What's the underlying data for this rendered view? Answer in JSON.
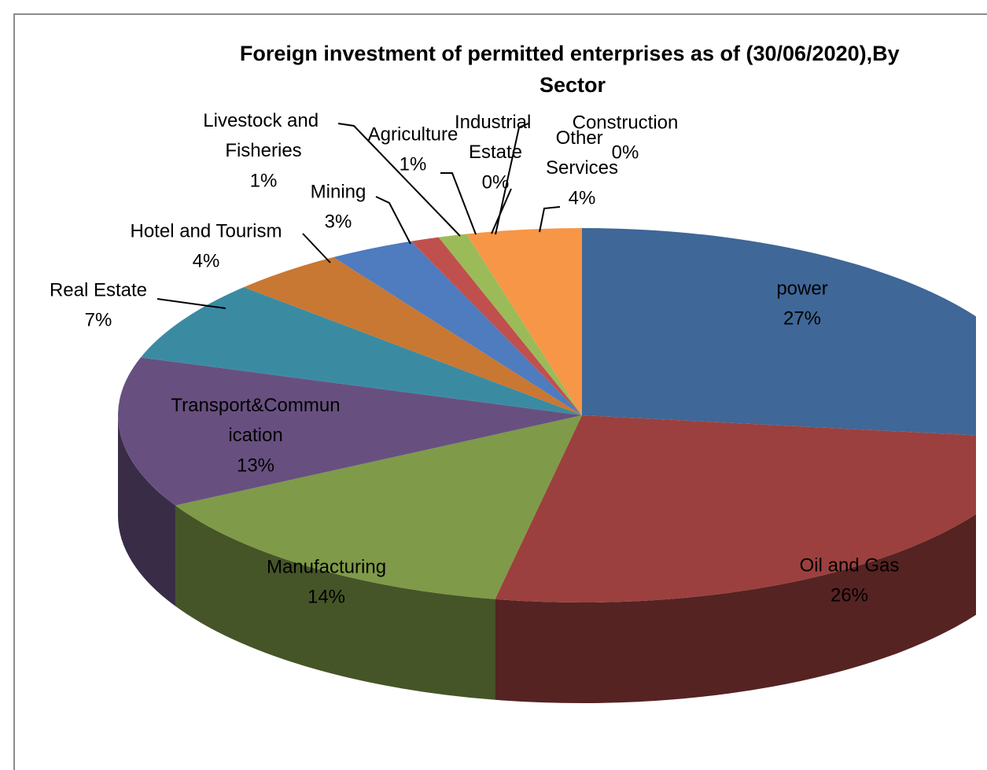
{
  "chart_data": {
    "type": "pie3d",
    "title": "Foreign investment of permitted enterprises as of (30/06/2020),By Sector",
    "categories": [
      "power",
      "Oil and Gas",
      "Manufacturing",
      "Transport&Communication",
      "Real Estate",
      "Hotel and Tourism",
      "Mining",
      "Livestock and Fisheries",
      "Agriculture",
      "Industrial Estate",
      "Construction",
      "Other Services"
    ],
    "values": [
      27,
      26,
      14,
      13,
      7,
      4,
      3,
      1,
      1,
      0,
      0,
      4
    ],
    "value_labels": [
      "27%",
      "26%",
      "14%",
      "13%",
      "7%",
      "4%",
      "3%",
      "1%",
      "1%",
      "0%",
      "0%",
      "4%"
    ],
    "colors": [
      "#3f6797",
      "#9b403e",
      "#7f9a48",
      "#67507f",
      "#3a8ba2",
      "#c87832",
      "#4f7bbf",
      "#c0504d",
      "#9bbb59",
      "#8064a2",
      "#4bacc6",
      "#f79646"
    ]
  }
}
